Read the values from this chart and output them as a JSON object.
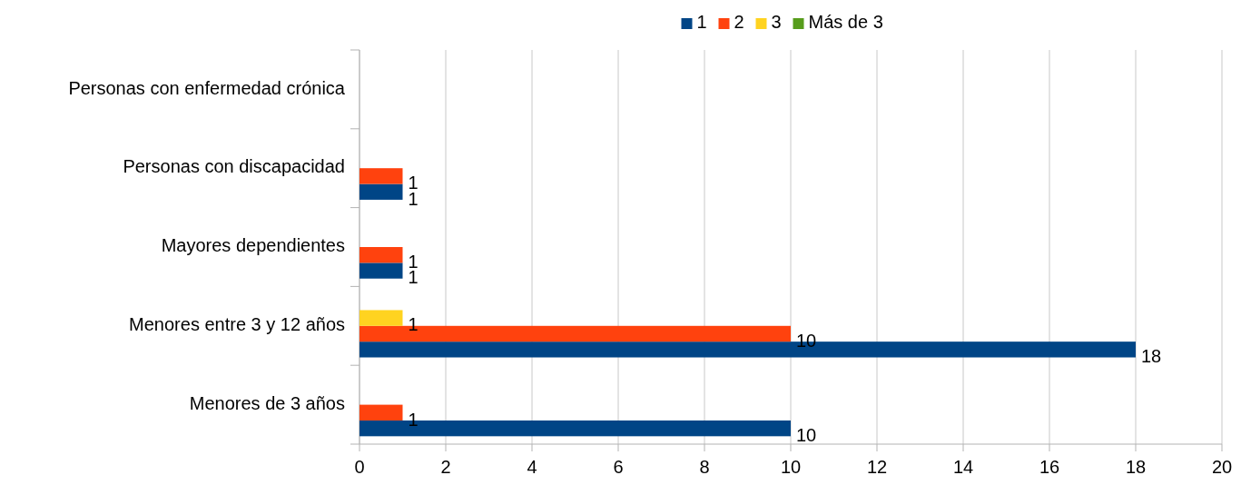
{
  "chart_data": {
    "type": "bar",
    "orientation": "horizontal",
    "categories": [
      "Personas con enfermedad crónica",
      "Personas con discapacidad",
      "Mayores dependientes",
      "Menores entre 3 y 12 años",
      "Menores de 3 años"
    ],
    "series": [
      {
        "name": "1",
        "color": "#004586",
        "values": [
          null,
          1,
          1,
          18,
          10
        ]
      },
      {
        "name": "2",
        "color": "#ff420e",
        "values": [
          null,
          1,
          1,
          10,
          1
        ]
      },
      {
        "name": "3",
        "color": "#ffd320",
        "values": [
          null,
          null,
          null,
          1,
          null
        ]
      },
      {
        "name": "Más de 3",
        "color": "#579d1c",
        "values": [
          null,
          null,
          null,
          null,
          null
        ]
      }
    ],
    "xlim": [
      0,
      20
    ],
    "xticks": [
      0,
      2,
      4,
      6,
      8,
      10,
      12,
      14,
      16,
      18,
      20
    ],
    "grid": "x",
    "legend": "top",
    "data_labels": true
  }
}
